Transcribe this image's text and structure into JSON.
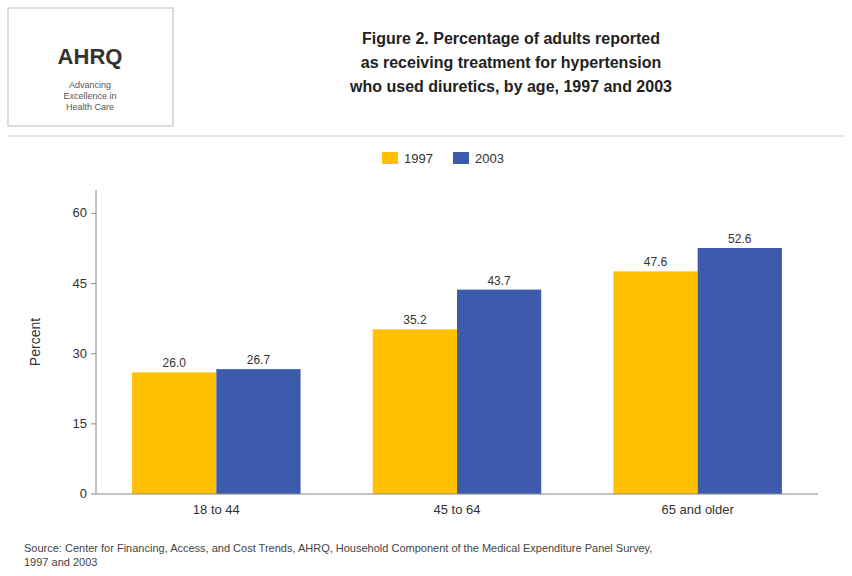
{
  "chart_data": {
    "type": "bar",
    "title": "Figure 2. Percentage of adults reported\nas receiving treatment for hypertension\nwho used diuretics, by age, 1997 and 2003",
    "annotations": [
      "AHRQ",
      "Advancing\nExcellence in\nHealth Care",
      "Source: Center for Financing, Access, and Cost Trends, AHRQ, Household Component of the Medical Expenditure Panel Survey,\n1997 and 2003"
    ],
    "categories": [
      "18 to 44",
      "45 to 64",
      "65 and older"
    ],
    "series": [
      {
        "name": "1997",
        "color": "#FFC000",
        "values": [
          26.0,
          35.2,
          47.6
        ],
        "value_labels": [
          "26.0",
          "35.2",
          "47.6"
        ]
      },
      {
        "name": "2003",
        "color": "#3C5BAD",
        "values": [
          26.7,
          43.7,
          52.6
        ],
        "value_labels": [
          "26.7",
          "43.7",
          "52.6"
        ]
      }
    ],
    "y_label": "Percent",
    "ylim": [
      0,
      65
    ],
    "yticks": [
      0,
      15,
      30,
      45,
      60
    ],
    "grid": false,
    "legend": "top",
    "data_labels": true
  }
}
